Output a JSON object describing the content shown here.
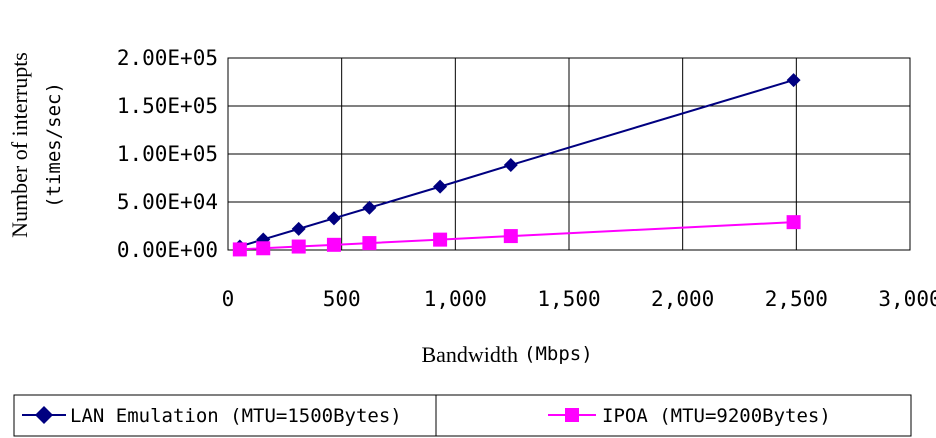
{
  "chart_data": {
    "type": "line",
    "title": "",
    "xlabel": "Bandwidth",
    "xlabel_unit": "(Mbps)",
    "ylabel_line1": "Number of interrupts",
    "ylabel_line2": "(times/sec)",
    "xlim": [
      0,
      3000
    ],
    "ylim": [
      0,
      200000
    ],
    "x_ticks": [
      0,
      500,
      1000,
      1500,
      2000,
      2500,
      3000
    ],
    "x_tick_labels": [
      "0",
      "500",
      "1,000",
      "1,500",
      "2,000",
      "2,500",
      "3,000"
    ],
    "y_ticks": [
      0,
      50000,
      100000,
      150000,
      200000
    ],
    "y_tick_labels": [
      "0.00E+00",
      "5.00E+04",
      "1.00E+05",
      "1.50E+05",
      "2.00E+05"
    ],
    "grid": true,
    "legend_position": "bottom",
    "series": [
      {
        "name": "LAN Emulation (MTU=1500Bytes)",
        "color": "#000080",
        "marker": "diamond",
        "x": [
          52,
          155,
          311,
          466,
          622,
          933,
          1244,
          2488
        ],
        "y": [
          3700,
          11000,
          22000,
          33000,
          44000,
          66000,
          88500,
          177000
        ]
      },
      {
        "name": "IPOA (MTU=9200Bytes)",
        "color": "#ff00ff",
        "marker": "square",
        "x": [
          52,
          155,
          311,
          466,
          622,
          933,
          1244,
          2488
        ],
        "y": [
          600,
          1800,
          3600,
          5400,
          7200,
          10800,
          14500,
          29000
        ]
      }
    ]
  }
}
